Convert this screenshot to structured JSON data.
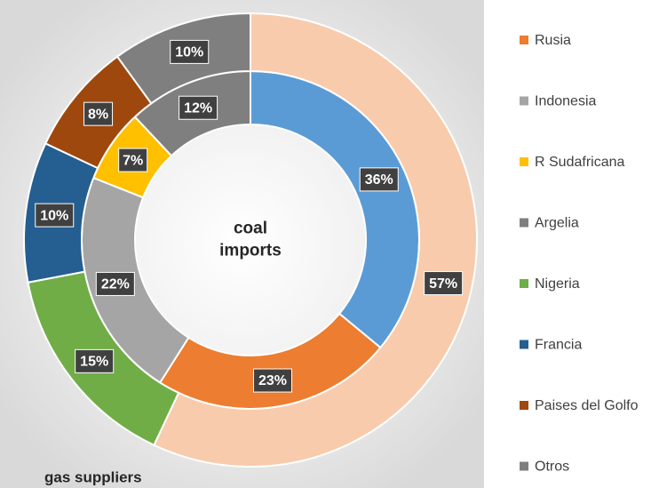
{
  "chart_data": {
    "type": "pie",
    "series": [
      {
        "name": "coal imports",
        "values": [
          36,
          23,
          22,
          7,
          12
        ],
        "value_labels": [
          "36%",
          "23%",
          "22%",
          "7%",
          "12%"
        ],
        "colors": [
          "#5b9bd5",
          "#ed7d31",
          "#a5a5a5",
          "#ffc000",
          "#7f7f7f"
        ]
      },
      {
        "name": "gas suppliers",
        "values": [
          57,
          15,
          10,
          8,
          10
        ],
        "value_labels": [
          "57%",
          "15%",
          "10%",
          "8%",
          "10%"
        ],
        "colors": [
          "#f8cbad",
          "#70ad47",
          "#255e91",
          "#9e480e",
          "#7f7f7f"
        ]
      }
    ],
    "legend": [
      {
        "name": "Rusia",
        "color": "#ed7d31"
      },
      {
        "name": "Indonesia",
        "color": "#a5a5a5"
      },
      {
        "name": "R Sudafricana",
        "color": "#ffc000"
      },
      {
        "name": "Argelia",
        "color": "#7f7f7f"
      },
      {
        "name": "Nigeria",
        "color": "#70ad47"
      },
      {
        "name": "Francia",
        "color": "#255e91"
      },
      {
        "name": "Paises del Golfo",
        "color": "#9e480e"
      },
      {
        "name": "Otros",
        "color": "#7f7f7f"
      }
    ]
  }
}
